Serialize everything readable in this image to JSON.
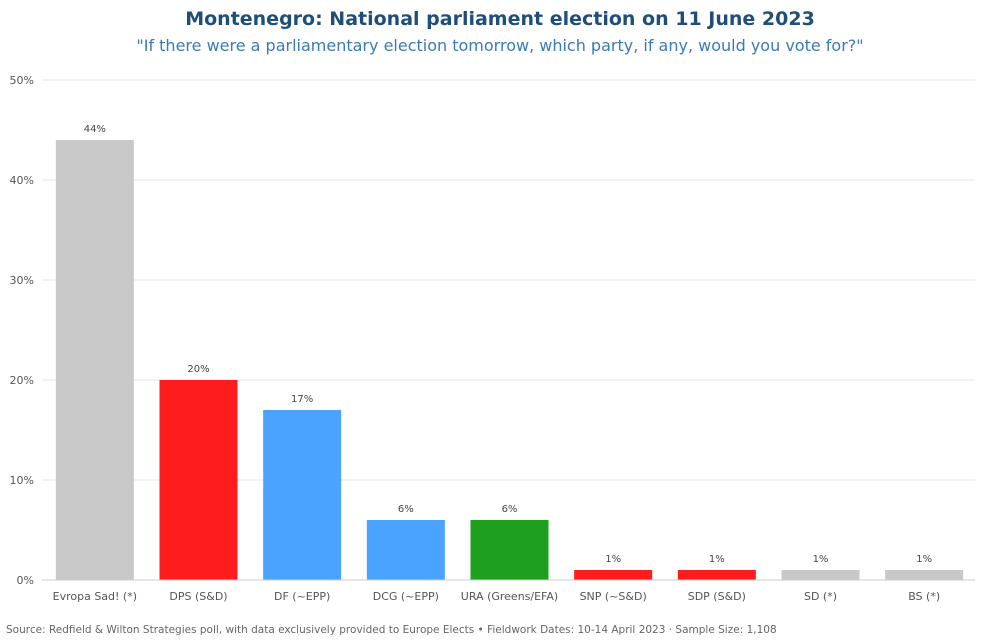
{
  "chart_data": {
    "type": "bar",
    "title": "Montenegro: National parliament election on 11 June 2023",
    "subtitle": "\"If there were a parliamentary election tomorrow, which party, if any, would you vote for?\"",
    "categories": [
      "Evropa Sad! (*)",
      "DPS (S&D)",
      "DF (~EPP)",
      "DCG (~EPP)",
      "URA (Greens/EFA)",
      "SNP (~S&D)",
      "SDP (S&D)",
      "SD (*)",
      "BS (*)"
    ],
    "values": [
      44,
      20,
      17,
      6,
      6,
      1,
      1,
      1,
      1
    ],
    "data_labels": [
      "44%",
      "20%",
      "17%",
      "6%",
      "6%",
      "1%",
      "1%",
      "1%",
      "1%"
    ],
    "colors": [
      "#c8c8c8",
      "#ff1c1c",
      "#4aa3ff",
      "#4aa3ff",
      "#1ea01e",
      "#ff1c1c",
      "#ff1c1c",
      "#c8c8c8",
      "#c8c8c8"
    ],
    "ylim": [
      0,
      50
    ],
    "yticks": [
      0,
      10,
      20,
      30,
      40,
      50
    ],
    "ytick_labels": [
      "0%",
      "10%",
      "20%",
      "30%",
      "40%",
      "50%"
    ],
    "grid": true,
    "source": "Source: Redfield & Wilton Strategies poll, with data exclusively provided to Europe Elects • Fieldwork Dates: 10-14 April 2023 · Sample Size: 1,108"
  }
}
